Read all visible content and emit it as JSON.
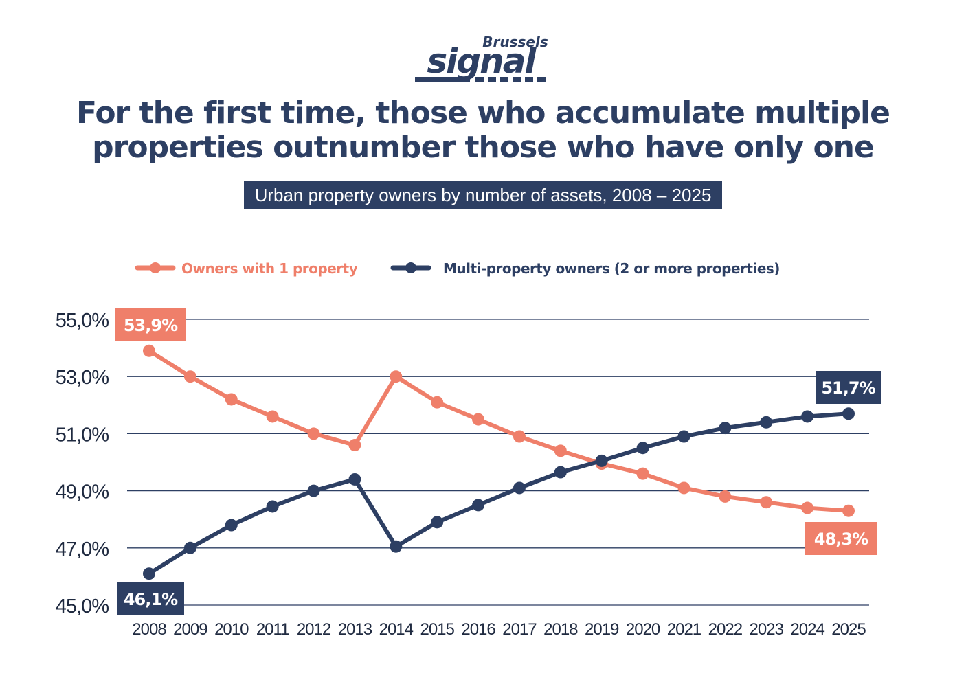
{
  "brand": {
    "top": "Brussels",
    "main": "signal"
  },
  "title_lines": [
    "For the first time, those who accumulate multiple",
    "properties outnumber those who have only one"
  ],
  "subtitle": "Urban property owners by number of assets, 2008 – 2025",
  "colors": {
    "navy": "#2d3f63",
    "salmon": "#ef7f6a",
    "grid": "#2d3f63"
  },
  "chart_data": {
    "type": "line",
    "title": "Urban property owners by number of assets, 2008 – 2025",
    "xlabel": "",
    "ylabel": "",
    "ylim": [
      45.0,
      55.0
    ],
    "yticks": [
      45.0,
      47.0,
      49.0,
      51.0,
      53.0,
      55.0
    ],
    "ytick_labels": [
      "45,0%",
      "47,0%",
      "49,0%",
      "51,0%",
      "53,0%",
      "55,0%"
    ],
    "grid": true,
    "legend_position": "top",
    "x": [
      "2008",
      "2009",
      "2010",
      "2011",
      "2012",
      "2013",
      "2014",
      "2015",
      "2016",
      "2017",
      "2018",
      "2019",
      "2020",
      "2021",
      "2022",
      "2023",
      "2024",
      "2025"
    ],
    "series": [
      {
        "name": "Owners with 1 property",
        "color": "#ef7f6a",
        "values": [
          53.9,
          53.0,
          52.2,
          51.6,
          51.0,
          50.6,
          53.0,
          52.1,
          51.5,
          50.9,
          50.4,
          49.95,
          49.6,
          49.1,
          48.8,
          48.6,
          48.4,
          48.3
        ]
      },
      {
        "name": "Multi-property owners (2 or more properties)",
        "color": "#2d3f63",
        "values": [
          46.1,
          47.0,
          47.8,
          48.45,
          49.0,
          49.4,
          47.05,
          47.9,
          48.5,
          49.1,
          49.65,
          50.05,
          50.5,
          50.9,
          51.2,
          51.4,
          51.6,
          51.7
        ]
      }
    ],
    "annotations": [
      {
        "series": 0,
        "x": "2008",
        "text": "53,9%"
      },
      {
        "series": 1,
        "x": "2008",
        "text": "46,1%"
      },
      {
        "series": 1,
        "x": "2025",
        "text": "51,7%"
      },
      {
        "series": 0,
        "x": "2025",
        "text": "48,3%"
      }
    ]
  }
}
